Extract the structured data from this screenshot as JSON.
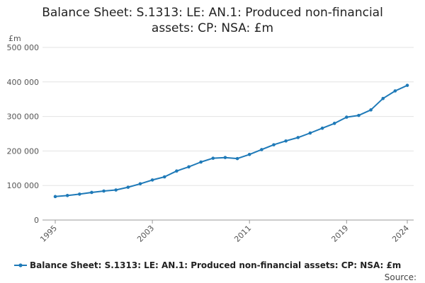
{
  "title_line1": "Balance Sheet: S.1313: LE: AN.1: Produced non-financial",
  "title_line2": "assets: CP: NSA: £m",
  "unit_label": "£m",
  "source_label": "Source:",
  "colors": {
    "series": "#1f7ab8",
    "grid": "#e3e3e3",
    "axis": "#999999"
  },
  "chart_data": {
    "type": "line",
    "title": "Balance Sheet: S.1313: LE: AN.1: Produced non-financial assets: CP: NSA: £m",
    "ylabel": "£m",
    "xlabel": "",
    "xlim": [
      1995,
      2024
    ],
    "ylim": [
      0,
      500000
    ],
    "y_ticks": [
      {
        "value": 0,
        "label": "0"
      },
      {
        "value": 100000,
        "label": "100 000"
      },
      {
        "value": 200000,
        "label": "200 000"
      },
      {
        "value": 300000,
        "label": "300 000"
      },
      {
        "value": 400000,
        "label": "400 000"
      },
      {
        "value": 500000,
        "label": "500 000"
      }
    ],
    "x_ticks": [
      {
        "value": 1995,
        "label": "1995"
      },
      {
        "value": 2003,
        "label": "2003"
      },
      {
        "value": 2011,
        "label": "2011"
      },
      {
        "value": 2019,
        "label": "2019"
      },
      {
        "value": 2024,
        "label": "2024"
      }
    ],
    "grid": true,
    "legend_position": "bottom",
    "series": [
      {
        "name": "Balance Sheet: S.1313: LE: AN.1: Produced non-financial assets: CP: NSA: £m",
        "x": [
          1995,
          1996,
          1997,
          1998,
          1999,
          2000,
          2001,
          2002,
          2003,
          2004,
          2005,
          2006,
          2007,
          2008,
          2009,
          2010,
          2011,
          2012,
          2013,
          2014,
          2015,
          2016,
          2017,
          2018,
          2019,
          2020,
          2021,
          2022,
          2023,
          2024
        ],
        "values": [
          68000,
          71000,
          75000,
          80000,
          84000,
          87000,
          95000,
          105000,
          116000,
          125000,
          142000,
          154000,
          168000,
          179000,
          181000,
          178000,
          190000,
          204000,
          218000,
          229000,
          239000,
          252000,
          266000,
          280000,
          298000,
          303000,
          319000,
          352000,
          374000,
          390000
        ]
      }
    ]
  }
}
